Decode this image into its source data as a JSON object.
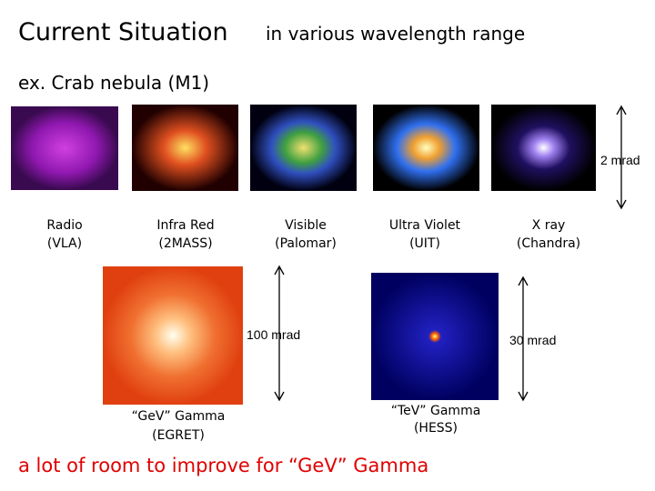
{
  "header": {
    "title": "Current Situation",
    "subtitle": "in various wavelength range"
  },
  "example": "ex. Crab nebula (M1)",
  "top_row": [
    {
      "label": "Radio",
      "instrument": "(VLA)"
    },
    {
      "label": "Infra Red",
      "instrument": "(2MASS)"
    },
    {
      "label": "Visible",
      "instrument": "(Palomar)"
    },
    {
      "label": "Ultra Violet",
      "instrument": "(UIT)"
    },
    {
      "label": "X ray",
      "instrument": "(Chandra)"
    }
  ],
  "top_scale": "2 mrad",
  "bottom_row": [
    {
      "label": "“GeV” Gamma",
      "instrument": "(EGRET)",
      "scale": "100 mrad"
    },
    {
      "label": "“TeV” Gamma",
      "instrument": "(HESS)",
      "scale": "30 mrad"
    }
  ],
  "footer": "a lot of room to improve for “GeV” Gamma"
}
